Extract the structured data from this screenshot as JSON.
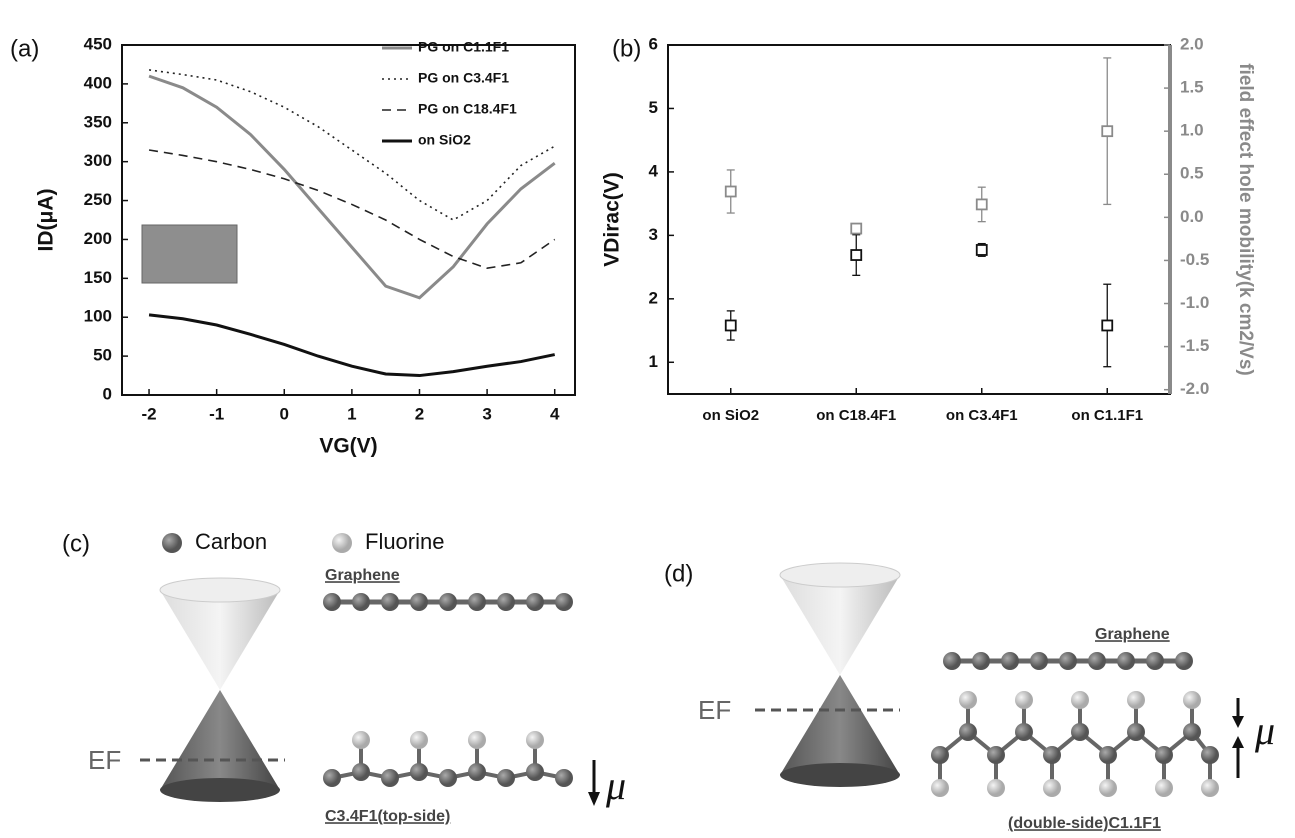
{
  "chart_data": [
    {
      "type": "line",
      "label": "(a)",
      "xlabel": "VG(V)",
      "ylabel": "ID(μA)",
      "x": [
        -2,
        -1.5,
        -1,
        -0.5,
        0,
        0.5,
        1,
        1.5,
        2,
        2.5,
        3,
        3.5,
        4
      ],
      "xlim": [
        -2.4,
        4.3
      ],
      "xticks": [
        -2,
        -1,
        0,
        1,
        2,
        3,
        4
      ],
      "ylim": [
        0,
        450
      ],
      "yticks": [
        0,
        50,
        100,
        150,
        200,
        250,
        300,
        350,
        400,
        450
      ],
      "series": [
        {
          "name": "PG on C1.1F1",
          "color": "#8a8a8a",
          "style": "solid",
          "values": [
            410,
            395,
            370,
            335,
            290,
            240,
            190,
            140,
            125,
            165,
            220,
            265,
            298
          ]
        },
        {
          "name": "PG on C3.4F1",
          "color": "#222222",
          "style": "dotted",
          "values": [
            418,
            412,
            405,
            390,
            370,
            345,
            315,
            285,
            250,
            225,
            250,
            295,
            320
          ]
        },
        {
          "name": "PG on C18.4F1",
          "color": "#222222",
          "style": "dashed",
          "values": [
            315,
            308,
            300,
            290,
            278,
            263,
            245,
            225,
            200,
            178,
            163,
            170,
            200
          ]
        },
        {
          "name": "on SiO2",
          "color": "#111111",
          "style": "solid",
          "values": [
            103,
            98,
            90,
            78,
            65,
            50,
            37,
            27,
            25,
            30,
            37,
            43,
            52
          ]
        }
      ]
    },
    {
      "type": "scatter",
      "label": "(b)",
      "ylabel": "VDirac(V)",
      "y2label": "field effect hole mobility(k cm2/Vs)",
      "categories": [
        "on SiO2",
        "on C18.4F1",
        "on C3.4F1",
        "on C1.1F1"
      ],
      "ylim": [
        0.5,
        6
      ],
      "yticks": [
        1,
        2,
        3,
        4,
        5,
        6
      ],
      "y2lim": [
        -2.05,
        2.0
      ],
      "y2ticks": [
        {
          "value": -2,
          "label": "-2.0"
        },
        {
          "value": -1.5,
          "label": "-1.5"
        },
        {
          "value": -1,
          "label": "-1.0"
        },
        {
          "value": -0.5,
          "label": "-0.5"
        },
        {
          "value": 0,
          "label": "0.0"
        },
        {
          "value": 0.5,
          "label": "0.5"
        },
        {
          "value": 1,
          "label": "1.0"
        },
        {
          "value": 1.5,
          "label": "1.5"
        },
        {
          "value": 2,
          "label": "2.0"
        }
      ],
      "series": [
        {
          "color": "#111111",
          "axis": "y",
          "values": [
            1.58,
            2.69,
            2.77,
            1.58
          ],
          "errors": [
            0.23,
            0.32,
            0.1,
            0.65
          ]
        },
        {
          "color": "#8a8a8a",
          "axis": "y2",
          "values": [
            0.3,
            -0.13,
            0.15,
            1.0
          ],
          "errors": [
            0.25,
            0.05,
            0.2,
            0.85
          ]
        }
      ]
    }
  ],
  "diagram_c": {
    "label": "(c)",
    "legend": [
      "Carbon",
      "Fluorine"
    ],
    "fermi_level": "EF",
    "layer_top": "Graphene",
    "layer_bottom": "C3.4F1(top-side)",
    "dipole": "μ"
  },
  "diagram_d": {
    "label": "(d)",
    "fermi_level": "EF",
    "layer_top": "Graphene",
    "layer_bottom": "(double-side)C1.1F1",
    "dipole": "μ"
  }
}
